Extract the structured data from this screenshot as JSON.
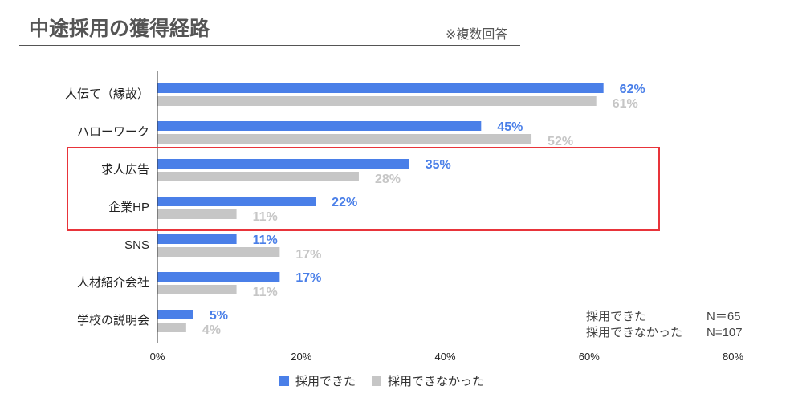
{
  "title": "中途採用の獲得経路",
  "note": "※複数回答",
  "sample_sizes": [
    {
      "label": "採用できた",
      "n": "N＝65"
    },
    {
      "label": "採用できなかった",
      "n": "N=107"
    }
  ],
  "colors": {
    "hired": "#4a7fe8",
    "not_hired": "#c6c6c6",
    "highlight_box": "#e8343a"
  },
  "chart_data": {
    "type": "bar",
    "orientation": "horizontal",
    "categories": [
      "人伝て（縁故）",
      "ハローワーク",
      "求人広告",
      "企業HP",
      "SNS",
      "人材紹介会社",
      "学校の説明会"
    ],
    "series": [
      {
        "name": "採用できた",
        "values": [
          62,
          45,
          35,
          22,
          11,
          17,
          5
        ],
        "labels": [
          "62%",
          "45%",
          "35%",
          "22%",
          "11%",
          "17%",
          "5%"
        ]
      },
      {
        "name": "採用できなかった",
        "values": [
          61,
          52,
          28,
          11,
          17,
          11,
          4
        ],
        "labels": [
          "61%",
          "52%",
          "28%",
          "11%",
          "17%",
          "11%",
          "4%"
        ]
      }
    ],
    "xlim": [
      0,
      80
    ],
    "xticks": [
      "0%",
      "20%",
      "40%",
      "60%",
      "80%"
    ],
    "legend": "bottom",
    "grid": false,
    "highlighted_categories": [
      "求人広告",
      "企業HP"
    ]
  }
}
